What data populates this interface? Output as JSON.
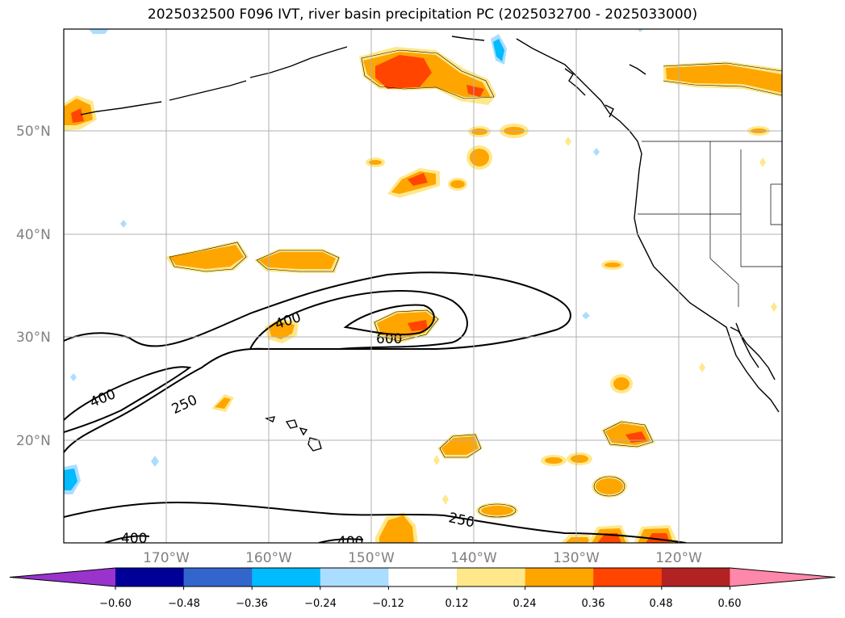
{
  "title": "2025032500 F096 IVT, river basin precipitation PC (2025032700 - 2025033000)",
  "map": {
    "lon_range": [
      -180,
      -110
    ],
    "lat_range": [
      10,
      60
    ],
    "lat_labels": [
      "50°N",
      "40°N",
      "30°N",
      "20°N"
    ],
    "lat_values": [
      50,
      40,
      30,
      20
    ],
    "lon_labels": [
      "170°W",
      "160°W",
      "150°W",
      "140°W",
      "130°W",
      "120°W"
    ],
    "lon_values": [
      -170,
      -160,
      -150,
      -140,
      -130,
      -120
    ],
    "gridlines": true
  },
  "ivt_contours": {
    "levels": [
      250,
      400,
      600
    ],
    "labels": [
      "400",
      "600",
      "400",
      "250",
      "250",
      "400",
      "400"
    ]
  },
  "colorbar": {
    "ticks": [
      "−0.60",
      "−0.48",
      "−0.36",
      "−0.24",
      "−0.12",
      "0.12",
      "0.24",
      "0.36",
      "0.48",
      "0.60"
    ],
    "colors": [
      "#9933cc",
      "#000099",
      "#3366cc",
      "#00bbff",
      "#aaddff",
      "#ffffff",
      "#ffe88a",
      "#ffa500",
      "#ff4500",
      "#b22222",
      "#ff88aa"
    ],
    "extend": "both"
  },
  "colors": {
    "weak_pos": "#ffe88a",
    "mid_pos": "#ffa500",
    "strong_pos": "#ff4500",
    "weak_neg": "#aaddff",
    "mid_neg": "#00bbff"
  }
}
